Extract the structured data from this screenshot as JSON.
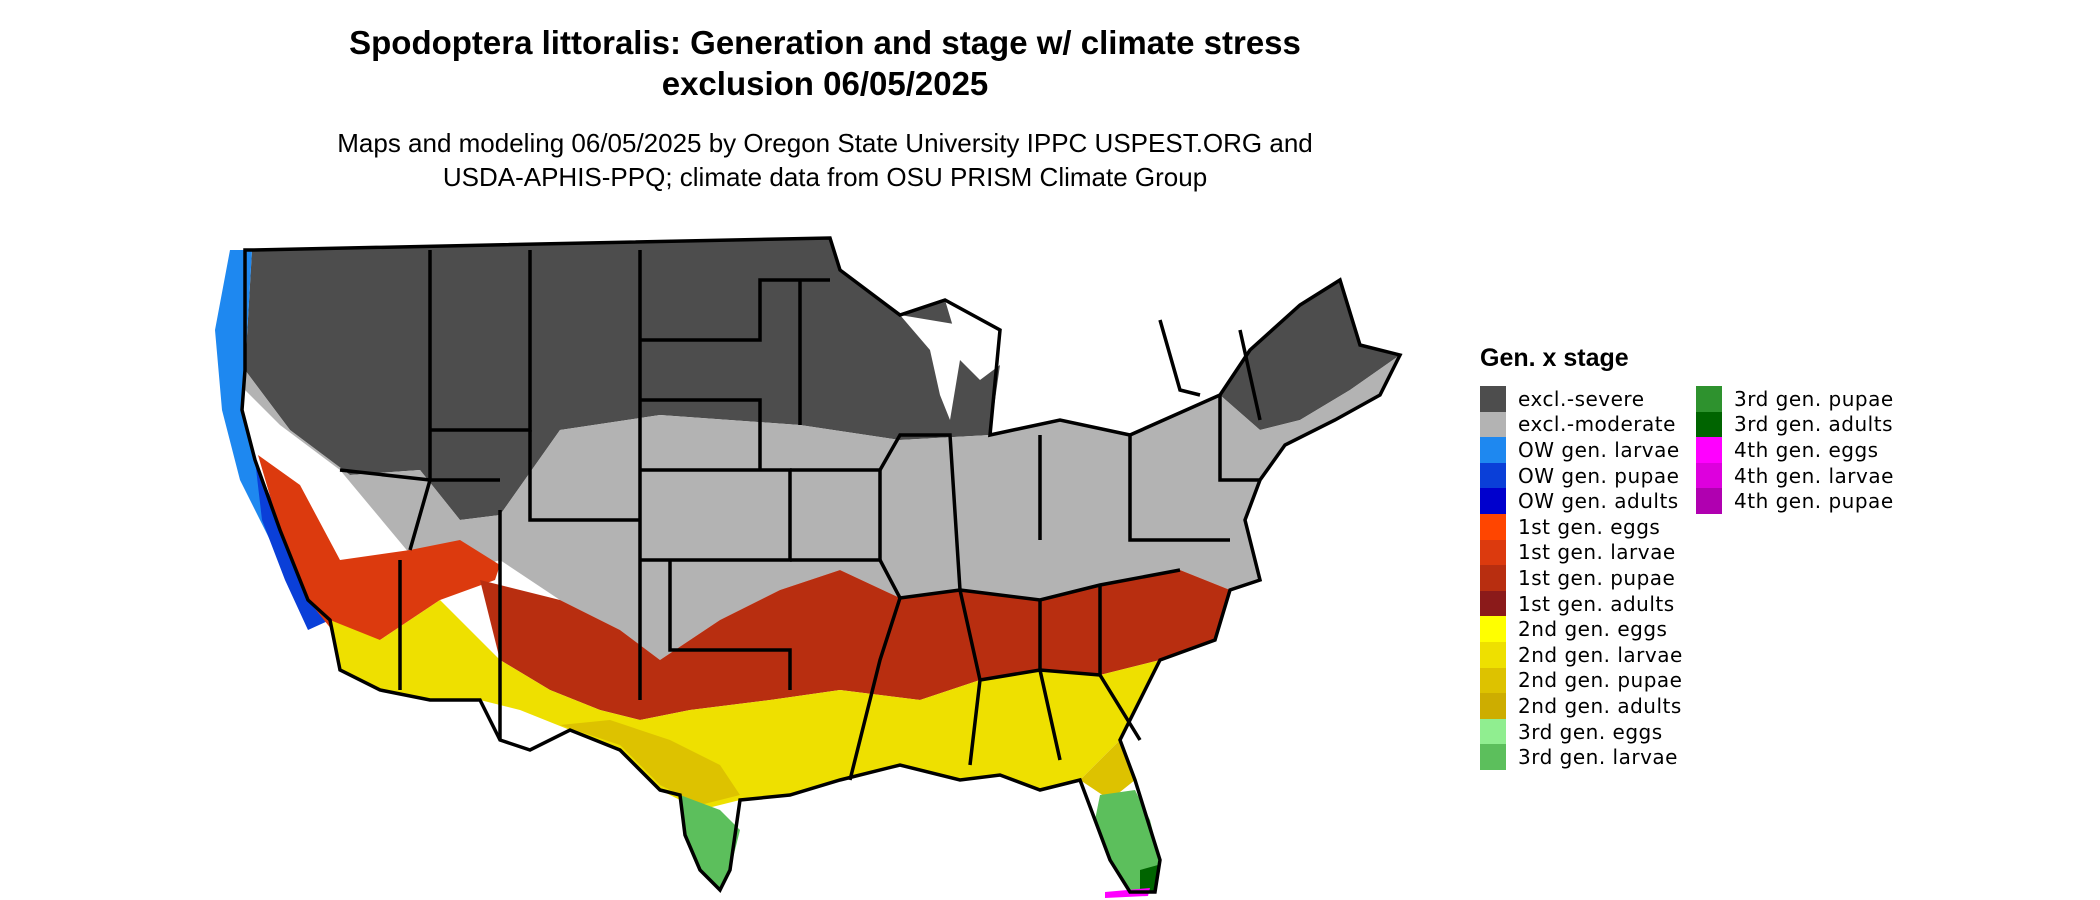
{
  "header": {
    "title_line1": "Spodoptera littoralis: Generation and stage w/ climate stress",
    "title_line2": "exclusion 06/05/2025",
    "subtitle_line1": "Maps and modeling 06/05/2025 by Oregon State University IPPC USPEST.ORG and",
    "subtitle_line2": "USDA-APHIS-PPQ; climate data from OSU PRISM Climate Group"
  },
  "legend": {
    "title": "Gen. x stage",
    "items": [
      {
        "label": "excl.-severe",
        "color": "#4d4d4d"
      },
      {
        "label": "excl.-moderate",
        "color": "#b3b3b3"
      },
      {
        "label": "OW gen. larvae",
        "color": "#1e88f0"
      },
      {
        "label": "OW gen. pupae",
        "color": "#0a3fd8"
      },
      {
        "label": "OW gen. adults",
        "color": "#0000cd"
      },
      {
        "label": "1st gen. eggs",
        "color": "#ff4500"
      },
      {
        "label": "1st gen. larvae",
        "color": "#dc3a0e"
      },
      {
        "label": "1st gen. pupae",
        "color": "#b82e10"
      },
      {
        "label": "1st gen. adults",
        "color": "#8b1a1a"
      },
      {
        "label": "2nd gen. eggs",
        "color": "#ffff00"
      },
      {
        "label": "2nd gen. larvae",
        "color": "#eee000"
      },
      {
        "label": "2nd gen. pupae",
        "color": "#ddc200"
      },
      {
        "label": "2nd gen. adults",
        "color": "#cdad00"
      },
      {
        "label": "3rd gen. eggs",
        "color": "#90ee90"
      },
      {
        "label": "3rd gen. larvae",
        "color": "#5cbf5c"
      },
      {
        "label": "3rd gen. pupae",
        "color": "#2e922e"
      },
      {
        "label": "3rd gen. adults",
        "color": "#006400"
      },
      {
        "label": "4th gen. eggs",
        "color": "#ff00ff"
      },
      {
        "label": "4th gen. larvae",
        "color": "#dd00dd"
      },
      {
        "label": "4th gen. pupae",
        "color": "#b000b0"
      }
    ]
  }
}
